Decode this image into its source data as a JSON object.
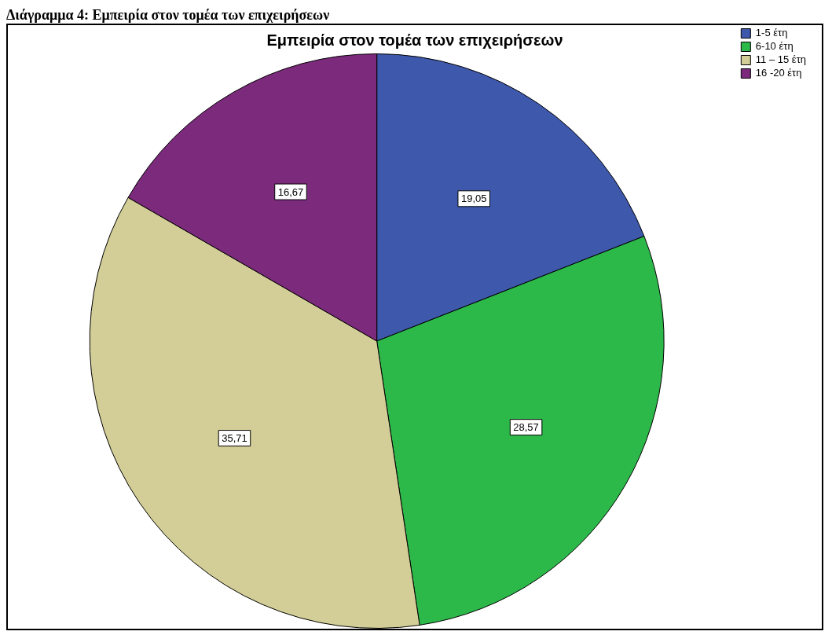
{
  "chart_data": {
    "type": "pie",
    "title": "Εμπειρία στον τομέα των επιχειρήσεων",
    "annotations": [
      "Διάγραμμα 4: Εμπειρία στον τομέα των επιχειρήσεων"
    ],
    "categories": [
      "1-5 έτη",
      "6-10 έτη",
      "11 – 15 έτη",
      "16 -20 έτη"
    ],
    "values": [
      19.05,
      28.57,
      35.71,
      16.67
    ],
    "value_labels": [
      "19,05",
      "28,57",
      "35,71",
      "16,67"
    ],
    "colors": [
      "#3e58ac",
      "#2db84a",
      "#d3ce97",
      "#7b2a7c"
    ],
    "legend": "top right"
  }
}
